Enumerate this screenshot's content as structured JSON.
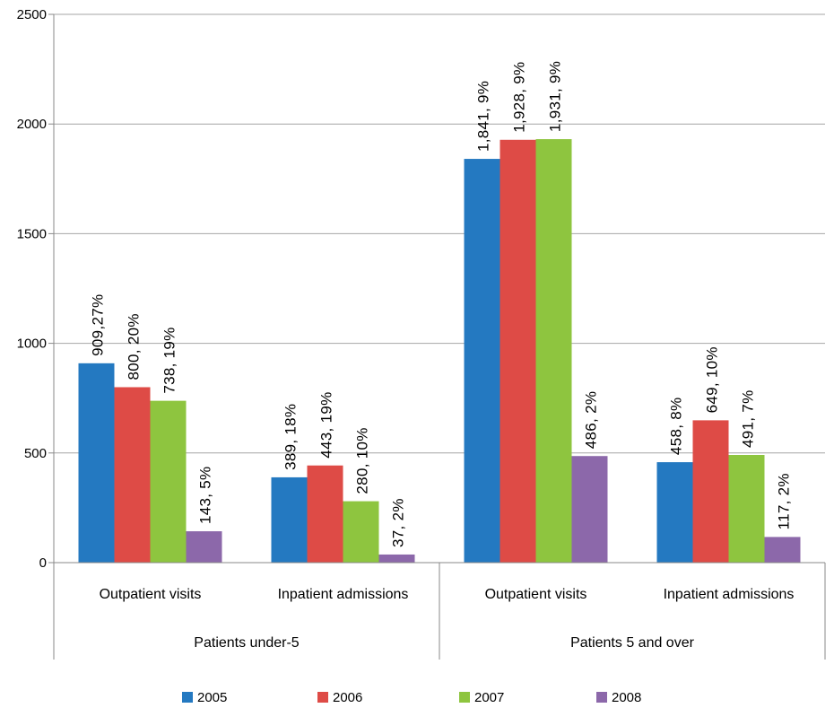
{
  "chart_data": {
    "type": "bar",
    "groups": [
      {
        "label": "Patients under-5",
        "categories": [
          "Outpatient visits",
          "Inpatient admissions"
        ]
      },
      {
        "label": "Patients 5 and over",
        "categories": [
          "Outpatient visits",
          "Inpatient admissions"
        ]
      }
    ],
    "categories": [
      "Outpatient visits",
      "Inpatient admissions",
      "Outpatient visits",
      "Inpatient admissions"
    ],
    "series": [
      {
        "name": "2005",
        "color": "#2479c1",
        "values": [
          909,
          389,
          1841,
          458
        ],
        "labels": [
          "909,27%",
          "389, 18%",
          "1,841, 9%",
          "458, 8%"
        ]
      },
      {
        "name": "2006",
        "color": "#de4b46",
        "values": [
          800,
          443,
          1928,
          649
        ],
        "labels": [
          "800, 20%",
          "443, 19%",
          "1,928, 9%",
          "649, 10%"
        ]
      },
      {
        "name": "2007",
        "color": "#8ec53f",
        "values": [
          738,
          280,
          1931,
          491
        ],
        "labels": [
          "738, 19%",
          "280, 10%",
          "1,931, 9%",
          "491, 7%"
        ]
      },
      {
        "name": "2008",
        "color": "#8c68aa",
        "values": [
          143,
          37,
          486,
          117
        ],
        "labels": [
          "143, 5%",
          "37, 2%",
          "486, 2%",
          "117, 2%"
        ]
      }
    ],
    "ylim": [
      0,
      2500
    ],
    "yticks": [
      0,
      500,
      1000,
      1500,
      2000,
      2500
    ],
    "grid": true,
    "legend_position": "bottom"
  }
}
